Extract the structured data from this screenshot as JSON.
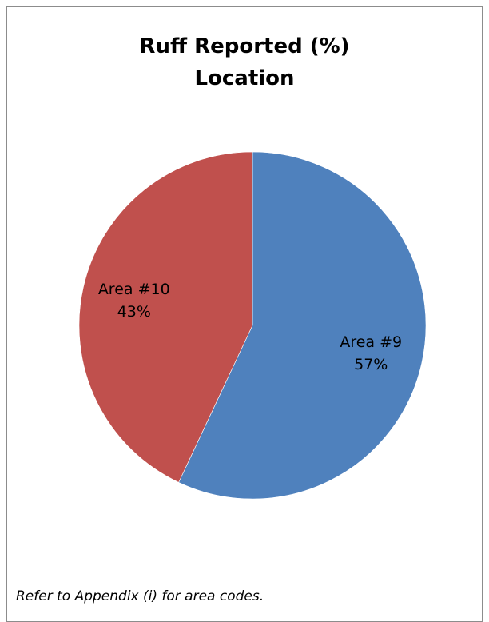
{
  "chart_data": {
    "type": "pie",
    "title": [
      "Ruff Reported (%)",
      "Location"
    ],
    "slices": [
      {
        "label": "Area #9",
        "value": 57,
        "display": "57%",
        "color": "#4F81BD"
      },
      {
        "label": "Area #10",
        "value": 43,
        "display": "43%",
        "color": "#C0504D"
      }
    ],
    "start_angle": "12 o'clock",
    "direction": "clockwise",
    "legend": "none"
  },
  "footnote": "Refer to Appendix (i) for area codes."
}
